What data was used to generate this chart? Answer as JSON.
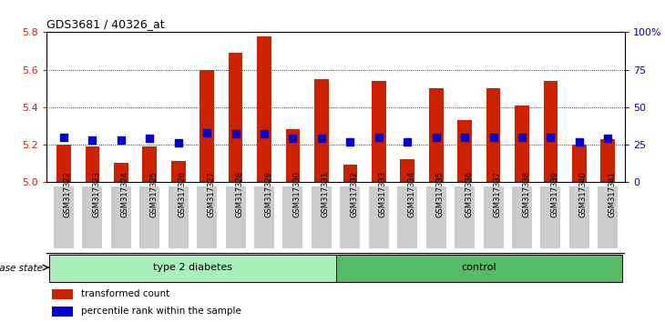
{
  "title": "GDS3681 / 40326_at",
  "samples": [
    "GSM317322",
    "GSM317323",
    "GSM317324",
    "GSM317325",
    "GSM317326",
    "GSM317327",
    "GSM317328",
    "GSM317329",
    "GSM317330",
    "GSM317331",
    "GSM317332",
    "GSM317333",
    "GSM317334",
    "GSM317335",
    "GSM317336",
    "GSM317337",
    "GSM317338",
    "GSM317339",
    "GSM317340",
    "GSM317341"
  ],
  "transformed_count": [
    5.2,
    5.19,
    5.1,
    5.19,
    5.11,
    5.6,
    5.69,
    5.78,
    5.28,
    5.55,
    5.09,
    5.54,
    5.12,
    5.5,
    5.33,
    5.5,
    5.41,
    5.54,
    5.2,
    5.23
  ],
  "percentile_rank": [
    30,
    28,
    28,
    29,
    26,
    33,
    32,
    32,
    29,
    29,
    27,
    30,
    27,
    30,
    30,
    30,
    30,
    30,
    27,
    29
  ],
  "group_defs": [
    {
      "start": 0,
      "end": 9,
      "label": "type 2 diabetes",
      "color": "#aaeebb"
    },
    {
      "start": 10,
      "end": 19,
      "label": "control",
      "color": "#55bb66"
    }
  ],
  "bar_color": "#cc2200",
  "dot_color": "#0000cc",
  "ylim_left": [
    5.0,
    5.8
  ],
  "ylim_right": [
    0,
    100
  ],
  "yticks_left": [
    5.0,
    5.2,
    5.4,
    5.6,
    5.8
  ],
  "yticks_right": [
    0,
    25,
    50,
    75,
    100
  ],
  "ylabel_left_color": "#cc2200",
  "ylabel_right_color": "#0000cc",
  "background_color": "#ffffff",
  "plot_bg_color": "#ffffff",
  "tick_bg_color": "#cccccc",
  "legend_items": [
    "transformed count",
    "percentile rank within the sample"
  ],
  "disease_state_label": "disease state"
}
